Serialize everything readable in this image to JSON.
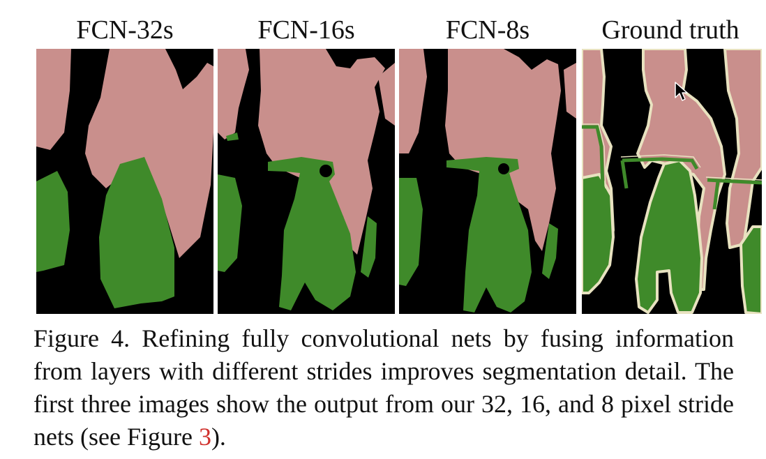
{
  "columns": [
    {
      "title": "FCN-32s"
    },
    {
      "title": "FCN-16s"
    },
    {
      "title": "FCN-8s"
    },
    {
      "title": "Ground truth"
    }
  ],
  "colors": {
    "person": "#c98f8c",
    "bicycle": "#3f8a2a",
    "background": "#000000",
    "boundary": "#e8e2c0",
    "figure_ref": "#d0312d"
  },
  "caption": {
    "lead": "Figure 4.  Refining fully convolutional nets by fusing information from layers with different strides improves segmentation detail. The first three images show the output from our 32, 16, and 8 pixel stride nets (see Figure ",
    "ref": "3",
    "tail": ")."
  }
}
